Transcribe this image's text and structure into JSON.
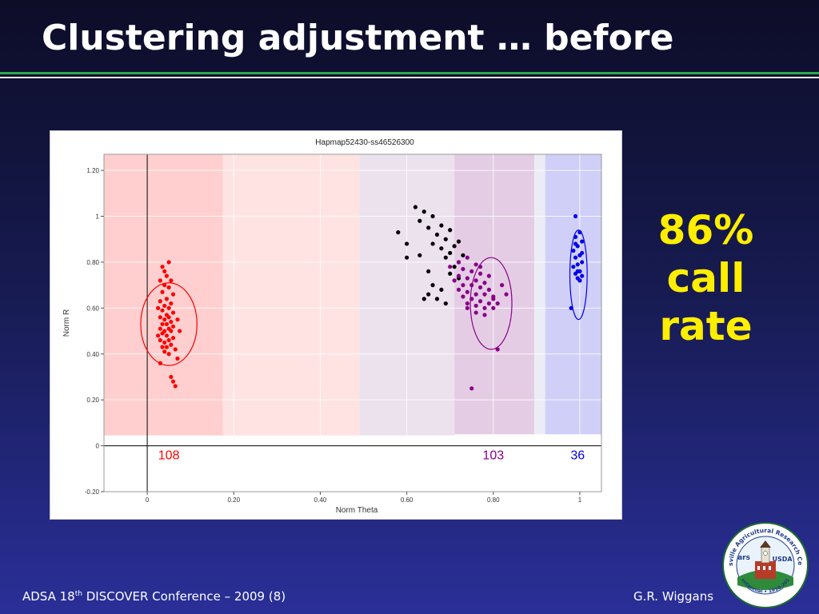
{
  "slide": {
    "title": "Clustering adjustment … before",
    "callout": [
      "86%",
      "call",
      "rate"
    ],
    "footer_left_prefix": "ADSA 18",
    "footer_left_sup": "th",
    "footer_left_suffix": " DISCOVER Conference – 2009 (8)",
    "footer_right": "G.R. Wiggans",
    "seal": {
      "text": "Beltsville Agricultural Research Center",
      "badge": "USDA",
      "bottom": "Centennial • 1910-2010",
      "logo": "ars"
    },
    "colors": {
      "title": "#ffffff",
      "callout": "#ffee00",
      "rule_green": "#2fa84a"
    }
  },
  "chart_data": {
    "type": "scatter",
    "title": "Hapmap52430-ss46526300",
    "xlabel": "Norm Theta",
    "ylabel": "Norm R",
    "xlim": [
      -0.1,
      1.05
    ],
    "ylim": [
      -0.2,
      1.27
    ],
    "x_ticks": [
      0,
      0.2,
      0.4,
      0.6,
      0.8,
      1
    ],
    "x_tick_labels": [
      "0",
      "0.20",
      "0.40",
      "0.60",
      "0.80",
      "1"
    ],
    "y_ticks": [
      -0.2,
      0,
      0.2,
      0.4,
      0.6,
      0.8,
      1,
      1.2
    ],
    "y_tick_labels": [
      "-0.20",
      "0",
      "0.20",
      "0.40",
      "0.60",
      "0.80",
      "1",
      "1.20"
    ],
    "regions": [
      {
        "x0": -0.1,
        "x1": 0.175,
        "y0": 0.045,
        "y1": 1.27,
        "color": "#ffcfcf"
      },
      {
        "x0": 0.175,
        "x1": 0.49,
        "y0": 0.045,
        "y1": 1.27,
        "color": "#ffe3e3"
      },
      {
        "x0": 0.49,
        "x1": 0.71,
        "y0": 0.045,
        "y1": 1.27,
        "color": "#ece2ee"
      },
      {
        "x0": 0.71,
        "x1": 0.895,
        "y0": 0.05,
        "y1": 1.27,
        "color": "#e4cde4"
      },
      {
        "x0": 0.895,
        "x1": 0.92,
        "y0": 0.05,
        "y1": 1.27,
        "color": "#ececf6"
      },
      {
        "x0": 0.92,
        "x1": 1.05,
        "y0": 0.05,
        "y1": 1.27,
        "color": "#cfcff8"
      }
    ],
    "clusters": [
      {
        "color": "#ff0000",
        "count_label": "108",
        "count_x": 0.05,
        "ellipse": {
          "cx": 0.05,
          "cy": 0.53,
          "rx": 0.065,
          "ry": 0.18
        },
        "points": [
          [
            0.035,
            0.78
          ],
          [
            0.05,
            0.8
          ],
          [
            0.04,
            0.76
          ],
          [
            0.045,
            0.74
          ],
          [
            0.03,
            0.72
          ],
          [
            0.055,
            0.72
          ],
          [
            0.04,
            0.7
          ],
          [
            0.05,
            0.69
          ],
          [
            0.035,
            0.67
          ],
          [
            0.06,
            0.66
          ],
          [
            0.045,
            0.64
          ],
          [
            0.03,
            0.63
          ],
          [
            0.055,
            0.62
          ],
          [
            0.04,
            0.61
          ],
          [
            0.05,
            0.6
          ],
          [
            0.035,
            0.59
          ],
          [
            0.06,
            0.58
          ],
          [
            0.045,
            0.57
          ],
          [
            0.03,
            0.56
          ],
          [
            0.05,
            0.56
          ],
          [
            0.04,
            0.55
          ],
          [
            0.055,
            0.54
          ],
          [
            0.035,
            0.53
          ],
          [
            0.045,
            0.53
          ],
          [
            0.06,
            0.52
          ],
          [
            0.03,
            0.51
          ],
          [
            0.05,
            0.51
          ],
          [
            0.04,
            0.5
          ],
          [
            0.055,
            0.5
          ],
          [
            0.035,
            0.49
          ],
          [
            0.045,
            0.48
          ],
          [
            0.06,
            0.47
          ],
          [
            0.03,
            0.46
          ],
          [
            0.05,
            0.46
          ],
          [
            0.04,
            0.45
          ],
          [
            0.055,
            0.44
          ],
          [
            0.035,
            0.43
          ],
          [
            0.045,
            0.43
          ],
          [
            0.065,
            0.42
          ],
          [
            0.04,
            0.41
          ],
          [
            0.05,
            0.4
          ],
          [
            0.07,
            0.38
          ],
          [
            0.03,
            0.36
          ],
          [
            0.055,
            0.3
          ],
          [
            0.06,
            0.28
          ],
          [
            0.065,
            0.26
          ],
          [
            0.025,
            0.6
          ],
          [
            0.07,
            0.55
          ],
          [
            0.025,
            0.48
          ],
          [
            0.075,
            0.5
          ]
        ]
      },
      {
        "color": "#000000",
        "count_label": "",
        "count_x": 0.64,
        "points": [
          [
            0.62,
            1.04
          ],
          [
            0.64,
            1.02
          ],
          [
            0.66,
            1.0
          ],
          [
            0.63,
            0.98
          ],
          [
            0.68,
            0.96
          ],
          [
            0.65,
            0.95
          ],
          [
            0.7,
            0.94
          ],
          [
            0.67,
            0.92
          ],
          [
            0.69,
            0.9
          ],
          [
            0.72,
            0.89
          ],
          [
            0.66,
            0.88
          ],
          [
            0.71,
            0.87
          ],
          [
            0.68,
            0.86
          ],
          [
            0.7,
            0.84
          ],
          [
            0.73,
            0.83
          ],
          [
            0.69,
            0.82
          ],
          [
            0.6,
            0.82
          ],
          [
            0.63,
            0.83
          ],
          [
            0.72,
            0.8
          ],
          [
            0.71,
            0.78
          ],
          [
            0.65,
            0.76
          ],
          [
            0.7,
            0.75
          ],
          [
            0.72,
            0.73
          ],
          [
            0.66,
            0.7
          ],
          [
            0.68,
            0.68
          ],
          [
            0.65,
            0.66
          ],
          [
            0.67,
            0.64
          ],
          [
            0.64,
            0.64
          ],
          [
            0.69,
            0.62
          ],
          [
            0.58,
            0.93
          ],
          [
            0.6,
            0.88
          ]
        ]
      },
      {
        "color": "#880088",
        "count_label": "103",
        "count_x": 0.8,
        "ellipse": {
          "cx": 0.795,
          "cy": 0.62,
          "rx": 0.048,
          "ry": 0.2
        },
        "points": [
          [
            0.72,
            0.8
          ],
          [
            0.74,
            0.82
          ],
          [
            0.76,
            0.79
          ],
          [
            0.73,
            0.77
          ],
          [
            0.75,
            0.76
          ],
          [
            0.77,
            0.75
          ],
          [
            0.79,
            0.74
          ],
          [
            0.72,
            0.74
          ],
          [
            0.74,
            0.73
          ],
          [
            0.76,
            0.72
          ],
          [
            0.78,
            0.71
          ],
          [
            0.73,
            0.7
          ],
          [
            0.75,
            0.7
          ],
          [
            0.77,
            0.69
          ],
          [
            0.79,
            0.68
          ],
          [
            0.74,
            0.67
          ],
          [
            0.76,
            0.66
          ],
          [
            0.78,
            0.66
          ],
          [
            0.8,
            0.65
          ],
          [
            0.73,
            0.65
          ],
          [
            0.75,
            0.64
          ],
          [
            0.77,
            0.63
          ],
          [
            0.79,
            0.62
          ],
          [
            0.81,
            0.62
          ],
          [
            0.76,
            0.61
          ],
          [
            0.78,
            0.6
          ],
          [
            0.74,
            0.6
          ],
          [
            0.8,
            0.64
          ],
          [
            0.71,
            0.72
          ],
          [
            0.72,
            0.68
          ],
          [
            0.82,
            0.7
          ],
          [
            0.83,
            0.66
          ],
          [
            0.76,
            0.58
          ],
          [
            0.78,
            0.57
          ],
          [
            0.74,
            0.62
          ],
          [
            0.8,
            0.6
          ],
          [
            0.75,
            0.25
          ],
          [
            0.81,
            0.42
          ],
          [
            0.7,
            0.78
          ],
          [
            0.77,
            0.78
          ]
        ]
      },
      {
        "color": "#0000ee",
        "count_label": "36",
        "count_x": 0.995,
        "ellipse": {
          "cx": 0.997,
          "cy": 0.745,
          "rx": 0.02,
          "ry": 0.195
        },
        "points": [
          [
            0.99,
            1.0
          ],
          [
            1.0,
            0.93
          ],
          [
            0.99,
            0.91
          ],
          [
            1.005,
            0.89
          ],
          [
            0.995,
            0.87
          ],
          [
            0.985,
            0.85
          ],
          [
            1.0,
            0.83
          ],
          [
            0.99,
            0.82
          ],
          [
            1.005,
            0.8
          ],
          [
            0.995,
            0.79
          ],
          [
            0.985,
            0.78
          ],
          [
            1.0,
            0.76
          ],
          [
            0.99,
            0.75
          ],
          [
            1.005,
            0.74
          ],
          [
            0.995,
            0.73
          ],
          [
            0.98,
            0.6
          ],
          [
            1.0,
            0.72
          ],
          [
            0.99,
            0.88
          ],
          [
            1.005,
            0.84
          ],
          [
            0.995,
            0.76
          ]
        ]
      }
    ]
  }
}
